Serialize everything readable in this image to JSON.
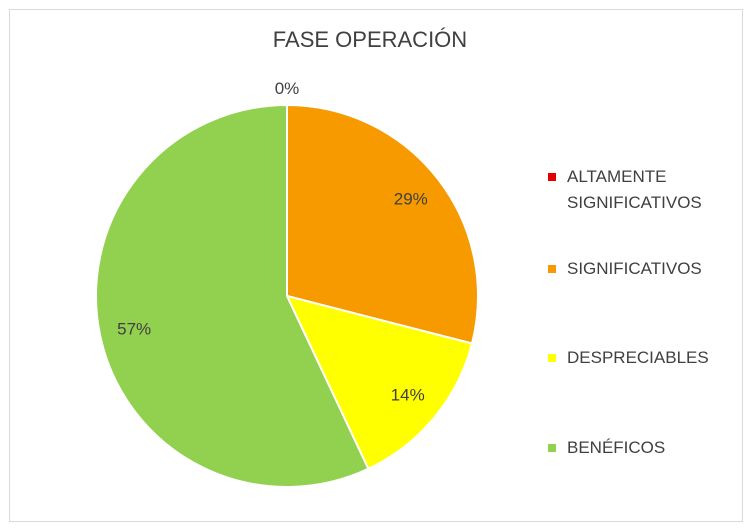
{
  "chart_data": {
    "type": "pie",
    "title": "FASE OPERACIÓN",
    "categories": [
      "ALTAMENTE SIGNIFICATIVOS",
      "SIGNIFICATIVOS",
      "DESPRECIABLES",
      "BENÉFICOS"
    ],
    "values": [
      0,
      29,
      14,
      57
    ],
    "value_labels": [
      "0%",
      "29%",
      "14%",
      "57%"
    ],
    "colors": [
      "#e00000",
      "#f79a00",
      "#ffff00",
      "#92d050"
    ],
    "legend": "right"
  }
}
